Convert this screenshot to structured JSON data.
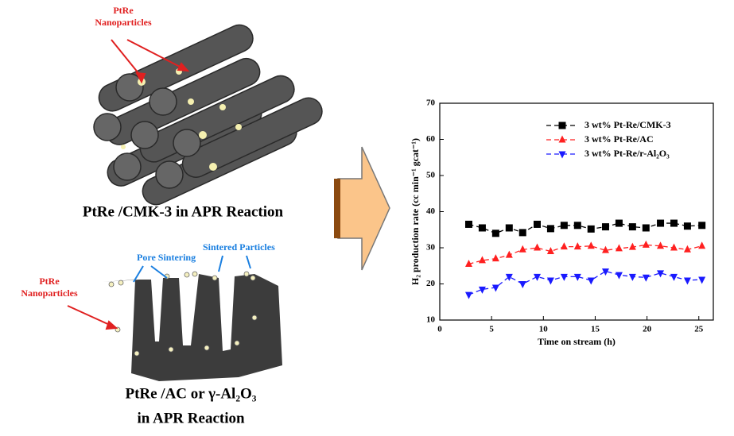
{
  "labels": {
    "top_particles": "PtRe",
    "top_particles_2": "Nanoparticles",
    "top_caption": "PtRe /CMK-3 in APR Reaction",
    "pore_sintering": "Pore Sintering",
    "sintered_particles": "Sintered Particles",
    "bottom_particles": "PtRe",
    "bottom_particles_2": "Nanoparticles",
    "bottom_caption": "PtRe /AC or γ-Al₂O₃",
    "bottom_caption_2": "in APR Reaction"
  },
  "chart_data": {
    "type": "line",
    "x_label": "Time on stream (h)",
    "y_label": "H₂ production rate (cc min⁻¹ gcat⁻¹)",
    "x": [
      2.8,
      4.1,
      5.4,
      6.7,
      8.0,
      9.4,
      10.7,
      12.0,
      13.3,
      14.6,
      16.0,
      17.3,
      18.6,
      19.9,
      21.3,
      22.6,
      23.9,
      25.3
    ],
    "series": [
      {
        "name": "3 wt% Pt-Re/CMK-3",
        "color": "#000000",
        "marker": "square",
        "values": [
          36.5,
          35.5,
          34,
          35.5,
          34.2,
          36.5,
          35.3,
          36.2,
          36.2,
          35.2,
          35.8,
          36.8,
          35.8,
          35.5,
          36.8,
          36.8,
          36,
          36.2
        ]
      },
      {
        "name": "3 wt% Pt-Re/AC",
        "color": "#ff2020",
        "marker": "triangle-up",
        "values": [
          25.5,
          26.5,
          27,
          28,
          29.5,
          30,
          29,
          30.3,
          30.3,
          30.5,
          29.3,
          29.8,
          30.2,
          30.8,
          30.5,
          30,
          29.5,
          30.5
        ]
      },
      {
        "name": "3 wt% Pt-Re/r-Al₂O₃",
        "color": "#1a1aff",
        "marker": "triangle-down",
        "values": [
          17,
          18.5,
          19,
          22,
          20,
          22,
          21,
          22,
          22,
          21,
          23.5,
          22.5,
          22,
          21.8,
          23,
          22,
          21,
          21.2
        ]
      }
    ],
    "xlim": [
      0,
      26.4
    ],
    "xticks": [
      0,
      5,
      10,
      15,
      20,
      25
    ],
    "ylim": [
      10,
      70
    ],
    "yticks": [
      10,
      20,
      30,
      40,
      50,
      60,
      70
    ],
    "legend": "upper right"
  }
}
